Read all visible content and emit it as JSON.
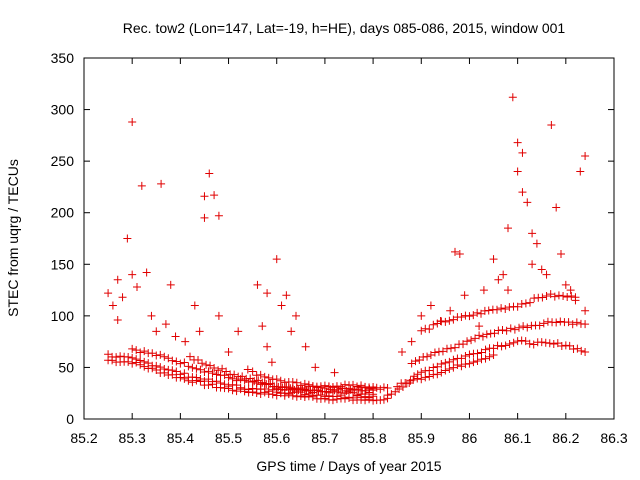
{
  "chart_data": {
    "type": "scatter",
    "title": "Rec. tow2 (Lon=147, Lat=-19, h=HE), days 085-086, 2015, window 001",
    "xlabel": "GPS time / Days of year 2015",
    "ylabel": "STEC from uqrg / TECUs",
    "xlim": [
      85.2,
      86.3
    ],
    "ylim": [
      0,
      350
    ],
    "xticks": [
      "85.2",
      "85.3",
      "85.4",
      "85.5",
      "85.6",
      "85.7",
      "85.8",
      "85.9",
      "86",
      "86.1",
      "86.2",
      "86.3"
    ],
    "yticks": [
      "0",
      "50",
      "100",
      "150",
      "200",
      "250",
      "300",
      "350"
    ],
    "marker": "+",
    "color": "#e00000",
    "grid": false,
    "legend": "none",
    "trends": [
      [
        [
          85.25,
          57
        ],
        [
          85.3,
          55
        ],
        [
          85.35,
          47
        ],
        [
          85.4,
          40
        ],
        [
          85.45,
          34
        ],
        [
          85.5,
          29
        ],
        [
          85.55,
          26
        ],
        [
          85.6,
          24
        ],
        [
          85.65,
          22
        ],
        [
          85.7,
          20
        ],
        [
          85.75,
          19
        ],
        [
          85.8,
          18
        ],
        [
          85.83,
          20
        ]
      ],
      [
        [
          85.25,
          62
        ],
        [
          85.3,
          58
        ],
        [
          85.35,
          52
        ],
        [
          85.4,
          44
        ],
        [
          85.45,
          38
        ],
        [
          85.5,
          33
        ],
        [
          85.55,
          29
        ],
        [
          85.6,
          27
        ],
        [
          85.65,
          25
        ],
        [
          85.7,
          23
        ],
        [
          85.75,
          22
        ],
        [
          85.8,
          22
        ]
      ],
      [
        [
          85.3,
          68
        ],
        [
          85.35,
          62
        ],
        [
          85.4,
          55
        ],
        [
          85.45,
          47
        ],
        [
          85.5,
          40
        ],
        [
          85.55,
          35
        ],
        [
          85.6,
          31
        ],
        [
          85.65,
          28
        ],
        [
          85.7,
          26
        ],
        [
          85.75,
          25
        ],
        [
          85.8,
          24
        ]
      ],
      [
        [
          85.42,
          60
        ],
        [
          85.47,
          50
        ],
        [
          85.52,
          42
        ],
        [
          85.57,
          35
        ],
        [
          85.62,
          30
        ],
        [
          85.67,
          28
        ],
        [
          85.72,
          28
        ],
        [
          85.77,
          29
        ],
        [
          85.8,
          28
        ]
      ],
      [
        [
          85.55,
          45
        ],
        [
          85.6,
          38
        ],
        [
          85.65,
          33
        ],
        [
          85.7,
          31
        ],
        [
          85.75,
          30
        ],
        [
          85.8,
          30
        ],
        [
          85.83,
          30
        ]
      ],
      [
        [
          85.6,
          28
        ],
        [
          85.65,
          30
        ],
        [
          85.7,
          32
        ],
        [
          85.75,
          32
        ],
        [
          85.8,
          31
        ]
      ],
      [
        [
          85.83,
          22
        ],
        [
          85.87,
          35
        ],
        [
          85.9,
          45
        ],
        [
          85.95,
          55
        ],
        [
          86.0,
          62
        ],
        [
          86.05,
          70
        ],
        [
          86.1,
          75
        ],
        [
          86.15,
          73
        ],
        [
          86.2,
          72
        ],
        [
          86.24,
          65
        ]
      ],
      [
        [
          85.85,
          32
        ],
        [
          85.9,
          40
        ],
        [
          85.95,
          47
        ],
        [
          86.0,
          55
        ],
        [
          86.05,
          62
        ]
      ],
      [
        [
          85.88,
          55
        ],
        [
          85.92,
          62
        ],
        [
          85.97,
          70
        ],
        [
          86.02,
          80
        ],
        [
          86.06,
          85
        ],
        [
          86.12,
          90
        ],
        [
          86.18,
          95
        ],
        [
          86.24,
          92
        ]
      ],
      [
        [
          85.9,
          85
        ],
        [
          85.95,
          95
        ],
        [
          86.0,
          100
        ],
        [
          86.04,
          105
        ],
        [
          86.1,
          110
        ],
        [
          86.16,
          120
        ],
        [
          86.22,
          118
        ]
      ]
    ],
    "outliers": [
      [
        85.25,
        122
      ],
      [
        85.26,
        110
      ],
      [
        85.27,
        96
      ],
      [
        85.27,
        135
      ],
      [
        85.28,
        118
      ],
      [
        85.29,
        175
      ],
      [
        85.3,
        288
      ],
      [
        85.3,
        140
      ],
      [
        85.31,
        128
      ],
      [
        85.32,
        226
      ],
      [
        85.33,
        142
      ],
      [
        85.34,
        100
      ],
      [
        85.35,
        85
      ],
      [
        85.36,
        228
      ],
      [
        85.37,
        92
      ],
      [
        85.38,
        130
      ],
      [
        85.39,
        80
      ],
      [
        85.41,
        75
      ],
      [
        85.43,
        110
      ],
      [
        85.44,
        85
      ],
      [
        85.45,
        195
      ],
      [
        85.45,
        216
      ],
      [
        85.46,
        238
      ],
      [
        85.47,
        217
      ],
      [
        85.48,
        197
      ],
      [
        85.48,
        100
      ],
      [
        85.5,
        65
      ],
      [
        85.52,
        85
      ],
      [
        85.54,
        48
      ],
      [
        85.56,
        130
      ],
      [
        85.57,
        90
      ],
      [
        85.58,
        122
      ],
      [
        85.58,
        70
      ],
      [
        85.59,
        55
      ],
      [
        85.6,
        155
      ],
      [
        85.61,
        110
      ],
      [
        85.62,
        120
      ],
      [
        85.63,
        85
      ],
      [
        85.64,
        100
      ],
      [
        85.66,
        70
      ],
      [
        85.68,
        50
      ],
      [
        85.72,
        45
      ],
      [
        85.86,
        65
      ],
      [
        85.88,
        75
      ],
      [
        85.9,
        100
      ],
      [
        85.92,
        110
      ],
      [
        85.94,
        95
      ],
      [
        85.96,
        105
      ],
      [
        85.97,
        162
      ],
      [
        85.98,
        160
      ],
      [
        85.99,
        120
      ],
      [
        86.02,
        90
      ],
      [
        86.03,
        125
      ],
      [
        86.05,
        155
      ],
      [
        86.06,
        135
      ],
      [
        86.07,
        140
      ],
      [
        86.08,
        125
      ],
      [
        86.08,
        185
      ],
      [
        86.09,
        312
      ],
      [
        86.1,
        268
      ],
      [
        86.1,
        240
      ],
      [
        86.11,
        220
      ],
      [
        86.11,
        258
      ],
      [
        86.12,
        210
      ],
      [
        86.13,
        180
      ],
      [
        86.13,
        150
      ],
      [
        86.14,
        170
      ],
      [
        86.15,
        145
      ],
      [
        86.16,
        140
      ],
      [
        86.17,
        285
      ],
      [
        86.18,
        205
      ],
      [
        86.19,
        160
      ],
      [
        86.2,
        130
      ],
      [
        86.21,
        125
      ],
      [
        86.22,
        115
      ],
      [
        86.23,
        240
      ],
      [
        86.24,
        255
      ],
      [
        86.24,
        105
      ]
    ]
  }
}
